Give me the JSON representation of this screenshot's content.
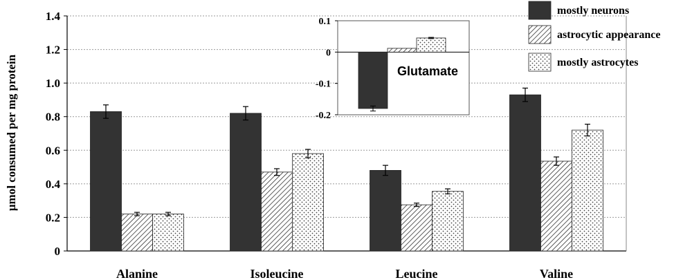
{
  "chart_data": [
    {
      "type": "bar",
      "categories": [
        "Alanine",
        "Isoleucine",
        "Leucine",
        "Valine"
      ],
      "ylabel": "μmol consumed per mg protein",
      "ylim": [
        0,
        1.4
      ],
      "yticks": [
        "0",
        "0.2",
        "0.4",
        "0.6",
        "0.8",
        "1.0",
        "1.2",
        "1.4"
      ],
      "grid": true,
      "legend_position": "top-right",
      "series": [
        {
          "name": "mostly neurons",
          "pattern": "solid",
          "color": "#333333",
          "values": [
            0.83,
            0.82,
            0.48,
            0.93
          ],
          "errors": [
            0.04,
            0.04,
            0.03,
            0.04
          ]
        },
        {
          "name": "astrocytic appearance",
          "pattern": "diagonal-hatch",
          "color": "#555555",
          "values": [
            0.22,
            0.47,
            0.275,
            0.535
          ],
          "errors": [
            0.01,
            0.02,
            0.01,
            0.025
          ]
        },
        {
          "name": "mostly astrocytes",
          "pattern": "dots",
          "color": "#555555",
          "values": [
            0.22,
            0.58,
            0.355,
            0.72
          ],
          "errors": [
            0.01,
            0.025,
            0.015,
            0.035
          ]
        }
      ]
    },
    {
      "type": "bar",
      "inset": true,
      "annotation": "Glutamate",
      "ylim": [
        -0.2,
        0.1
      ],
      "yticks": [
        "0.1",
        "0",
        "-0.1",
        "-0.2"
      ],
      "series": [
        {
          "name": "mostly neurons",
          "values": [
            -0.18
          ],
          "errors": [
            0.008
          ]
        },
        {
          "name": "astrocytic appearance",
          "values": [
            0.012
          ],
          "errors": [
            0.0
          ]
        },
        {
          "name": "mostly astrocytes",
          "values": [
            0.045
          ],
          "errors": [
            0.002
          ]
        }
      ]
    }
  ]
}
